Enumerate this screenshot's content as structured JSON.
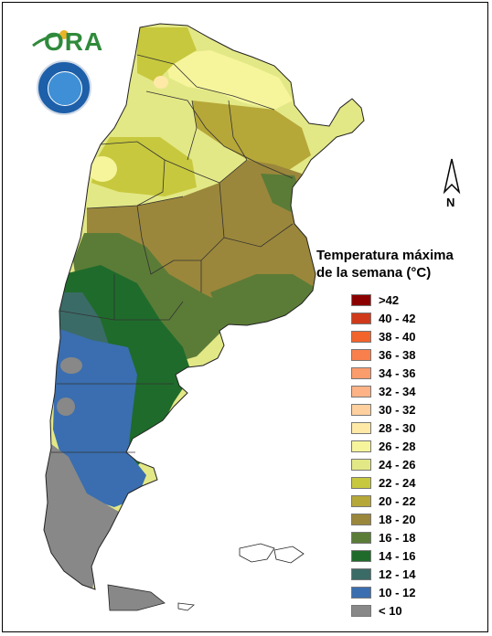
{
  "legend": {
    "title_line1": "Temperatura máxima",
    "title_line2": "de la semana (°C)",
    "items": [
      {
        "label": ">42",
        "color": "#8b0000"
      },
      {
        "label": "40 - 42",
        "color": "#d03a1a"
      },
      {
        "label": "38 - 40",
        "color": "#f2642b"
      },
      {
        "label": "36 - 38",
        "color": "#f9804c"
      },
      {
        "label": "34 - 36",
        "color": "#fb9c6c"
      },
      {
        "label": "32 - 34",
        "color": "#fdb386"
      },
      {
        "label": "30 - 32",
        "color": "#fdd09e"
      },
      {
        "label": "28 - 30",
        "color": "#fee9a6"
      },
      {
        "label": "26 - 28",
        "color": "#f6f59c"
      },
      {
        "label": "24 - 26",
        "color": "#e3e886"
      },
      {
        "label": "22 - 24",
        "color": "#c7c83d"
      },
      {
        "label": "20 - 22",
        "color": "#b6a739"
      },
      {
        "label": "18 - 20",
        "color": "#9b873b"
      },
      {
        "label": "16 - 18",
        "color": "#5b7c37"
      },
      {
        "label": "14 - 16",
        "color": "#1f6b2b"
      },
      {
        "label": "12 - 14",
        "color": "#3b6b67"
      },
      {
        "label": "10 - 12",
        "color": "#3a6eb0"
      },
      {
        "label": "< 10",
        "color": "#888888"
      }
    ]
  },
  "north_arrow": {
    "label": "N"
  },
  "logo": {
    "text": "ORA"
  }
}
